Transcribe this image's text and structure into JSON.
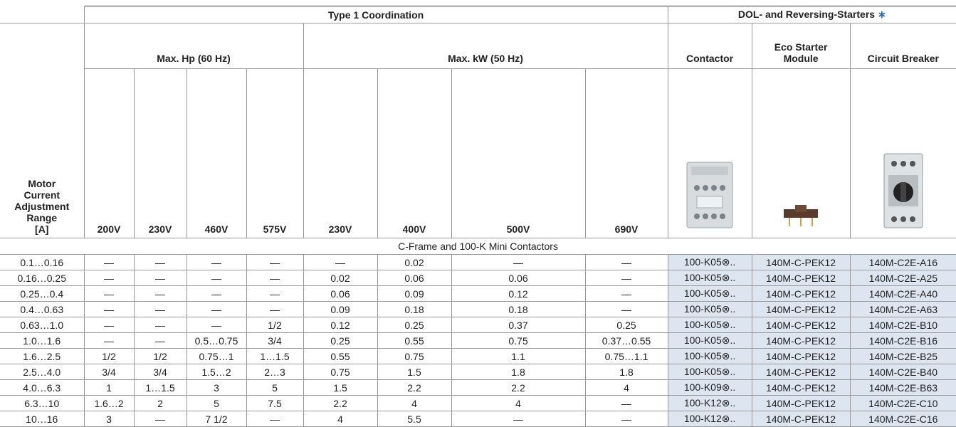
{
  "header": {
    "group_type1": "Type 1 Coordination",
    "group_starters": "DOL- and Reversing-Starters",
    "group_starters_mark": "∗",
    "hp_group": "Max. Hp (60 Hz)",
    "kw_group": "Max. kW (50 Hz)",
    "contactor": "Contactor",
    "eco_module": [
      "Eco Starter",
      "Module"
    ],
    "circuit_breaker": "Circuit Breaker",
    "row_label": [
      "Motor",
      "Current",
      "Adjustment",
      "Range",
      "[A]"
    ],
    "hp_columns": [
      "200V",
      "230V",
      "460V",
      "575V"
    ],
    "kw_columns": [
      "230V",
      "400V",
      "500V",
      "690V"
    ]
  },
  "section": "C-Frame and 100-K Mini Contactors",
  "rows": [
    [
      "0.1…0.16",
      "—",
      "—",
      "—",
      "—",
      "—",
      "0.02",
      "—",
      "—",
      "100-K05⊗..",
      "140M-C-PEK12",
      "140M-C2E-A16"
    ],
    [
      "0.16…0.25",
      "—",
      "—",
      "—",
      "—",
      "0.02",
      "0.06",
      "0.06",
      "—",
      "100-K05⊗..",
      "140M-C-PEK12",
      "140M-C2E-A25"
    ],
    [
      "0.25…0.4",
      "—",
      "—",
      "—",
      "—",
      "0.06",
      "0.09",
      "0.12",
      "—",
      "100-K05⊗..",
      "140M-C-PEK12",
      "140M-C2E-A40"
    ],
    [
      "0.4…0.63",
      "—",
      "—",
      "—",
      "—",
      "0.09",
      "0.18",
      "0.18",
      "—",
      "100-K05⊗..",
      "140M-C-PEK12",
      "140M-C2E-A63"
    ],
    [
      "0.63…1.0",
      "—",
      "—",
      "—",
      "1/2",
      "0.12",
      "0.25",
      "0.37",
      "0.25",
      "100-K05⊗..",
      "140M-C-PEK12",
      "140M-C2E-B10"
    ],
    [
      "1.0…1.6",
      "—",
      "—",
      "0.5…0.75",
      "3/4",
      "0.25",
      "0.55",
      "0.75",
      "0.37…0.55",
      "100-K05⊗..",
      "140M-C-PEK12",
      "140M-C2E-B16"
    ],
    [
      "1.6…2.5",
      "1/2",
      "1/2",
      "0.75…1",
      "1…1.5",
      "0.55",
      "0.75",
      "1.1",
      "0.75…1.1",
      "100-K05⊗..",
      "140M-C-PEK12",
      "140M-C2E-B25"
    ],
    [
      "2.5…4.0",
      "3/4",
      "3/4",
      "1.5…2",
      "2…3",
      "0.75",
      "1.5",
      "1.8",
      "1.8",
      "100-K05⊗..",
      "140M-C-PEK12",
      "140M-C2E-B40"
    ],
    [
      "4.0…6.3",
      "1",
      "1…1.5",
      "3",
      "5",
      "1.5",
      "2.2",
      "2.2",
      "4",
      "100-K09⊗..",
      "140M-C-PEK12",
      "140M-C2E-B63"
    ],
    [
      "6.3…10",
      "1.6…2",
      "2",
      "5",
      "7.5",
      "2.2",
      "4",
      "4",
      "—",
      "100-K12⊗..",
      "140M-C-PEK12",
      "140M-C2E-C10"
    ],
    [
      "10…16",
      "3",
      "—",
      "7 1/2",
      "—",
      "4",
      "5.5",
      "—",
      "—",
      "100-K12⊗..",
      "140M-C-PEK12",
      "140M-C2E-C16"
    ]
  ]
}
